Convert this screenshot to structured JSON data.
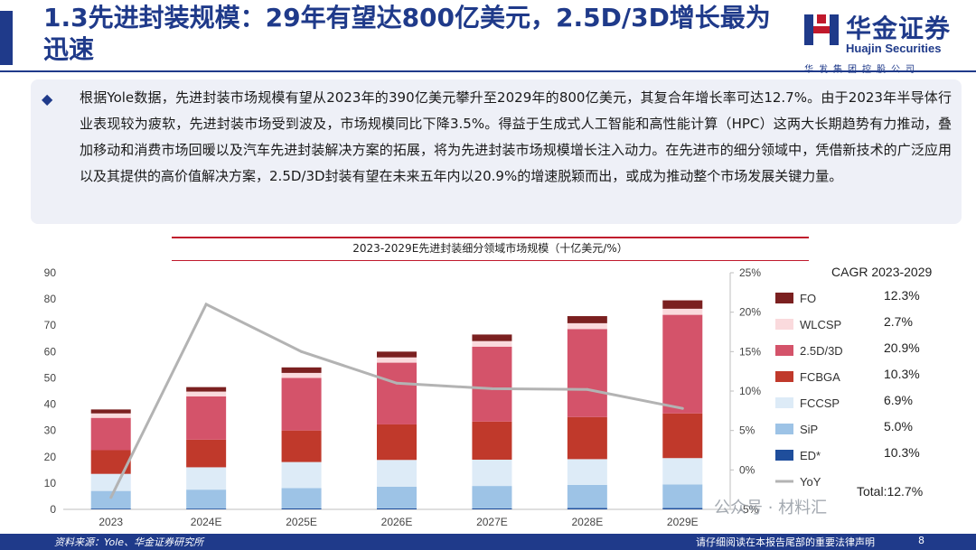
{
  "header": {
    "title": "1.3先进封装规模：29年有望达800亿美元，2.5D/3D增长最为迅速",
    "logo_cn": "华金证券",
    "logo_en": "Huajin Securities",
    "logo_sub": "华发集团控股公司"
  },
  "summary": {
    "text": "根据Yole数据，先进封装市场规模有望从2023年的390亿美元攀升至2029年的800亿美元，其复合年增长率可达12.7%。由于2023年半导体行业表现较为疲软，先进封装市场受到波及，市场规模同比下降3.5%。得益于生成式人工智能和高性能计算（HPC）这两大长期趋势有力推动，叠加移动和消费市场回暖以及汽车先进封装解决方案的拓展，将为先进封装市场规模增长注入动力。在先进市的细分领域中，凭借新技术的广泛应用以及其提供的高价值解决方案，2.5D/3D封装有望在未来五年内以20.9%的增速脱颖而出，或成为推动整个市场发展关键力量。"
  },
  "chart_data": {
    "type": "bar",
    "stacked": true,
    "title": "2023-2029E先进封装细分领域市场规模（十亿美元/%）",
    "categories": [
      "2023",
      "2024E",
      "2025E",
      "2026E",
      "2027E",
      "2028E",
      "2029E"
    ],
    "ylim": [
      0,
      90
    ],
    "yticks": [
      "0",
      "10",
      "20",
      "30",
      "40",
      "50",
      "60",
      "70",
      "80",
      "90"
    ],
    "y2lim": [
      -5,
      25
    ],
    "y2ticks": [
      "-5%",
      "0%",
      "5%",
      "10%",
      "15%",
      "20%",
      "25%"
    ],
    "series": [
      {
        "name": "ED*",
        "color": "#1f4e9c",
        "values": [
          0.3,
          0.3,
          0.4,
          0.4,
          0.4,
          0.5,
          0.5
        ]
      },
      {
        "name": "SiP",
        "color": "#9dc3e6",
        "values": [
          6.7,
          7.2,
          7.7,
          8.2,
          8.5,
          8.8,
          9.0
        ]
      },
      {
        "name": "FCCSP",
        "color": "#ddebf7",
        "values": [
          6.5,
          8.5,
          9.9,
          10.2,
          10.0,
          9.8,
          10.0
        ]
      },
      {
        "name": "FCBGA",
        "color": "#c0392b",
        "values": [
          9.0,
          10.5,
          12.0,
          13.5,
          14.5,
          16.0,
          17.0
        ]
      },
      {
        "name": "2.5D/3D",
        "color": "#d4536a",
        "values": [
          12.3,
          16.5,
          20.0,
          23.5,
          28.5,
          33.5,
          37.5
        ]
      },
      {
        "name": "WLCSP",
        "color": "#fadadd",
        "values": [
          1.7,
          1.8,
          1.9,
          2.0,
          2.1,
          2.2,
          2.3
        ]
      },
      {
        "name": "FO",
        "color": "#7b2020",
        "values": [
          1.5,
          1.7,
          2.1,
          2.2,
          2.5,
          2.7,
          3.2
        ]
      }
    ],
    "line": {
      "name": "YoY",
      "color": "#b3b3b3",
      "axis": "right",
      "values": [
        -3.5,
        21.0,
        15.0,
        11.0,
        10.3,
        10.2,
        7.8
      ]
    },
    "legend_title": "CAGR 2023-2029",
    "legend": [
      {
        "name": "FO",
        "cagr": "12.3%",
        "color": "#7b2020"
      },
      {
        "name": "WLCSP",
        "cagr": "2.7%",
        "color": "#fadadd"
      },
      {
        "name": "2.5D/3D",
        "cagr": "20.9%",
        "color": "#d4536a"
      },
      {
        "name": "FCBGA",
        "cagr": "10.3%",
        "color": "#c0392b"
      },
      {
        "name": "FCCSP",
        "cagr": "6.9%",
        "color": "#ddebf7"
      },
      {
        "name": "SiP",
        "cagr": "5.0%",
        "color": "#9dc3e6"
      },
      {
        "name": "ED*",
        "cagr": "10.3%",
        "color": "#1f4e9c"
      },
      {
        "name": "YoY",
        "cagr": "Total:12.7%",
        "color": "#b3b3b3"
      }
    ]
  },
  "footer": {
    "source": "资料来源：Yole、华金证券研究所",
    "note": "请仔细阅读在本报告尾部的重要法律声明",
    "page": "8"
  },
  "watermark": "公众号 · 材料汇"
}
